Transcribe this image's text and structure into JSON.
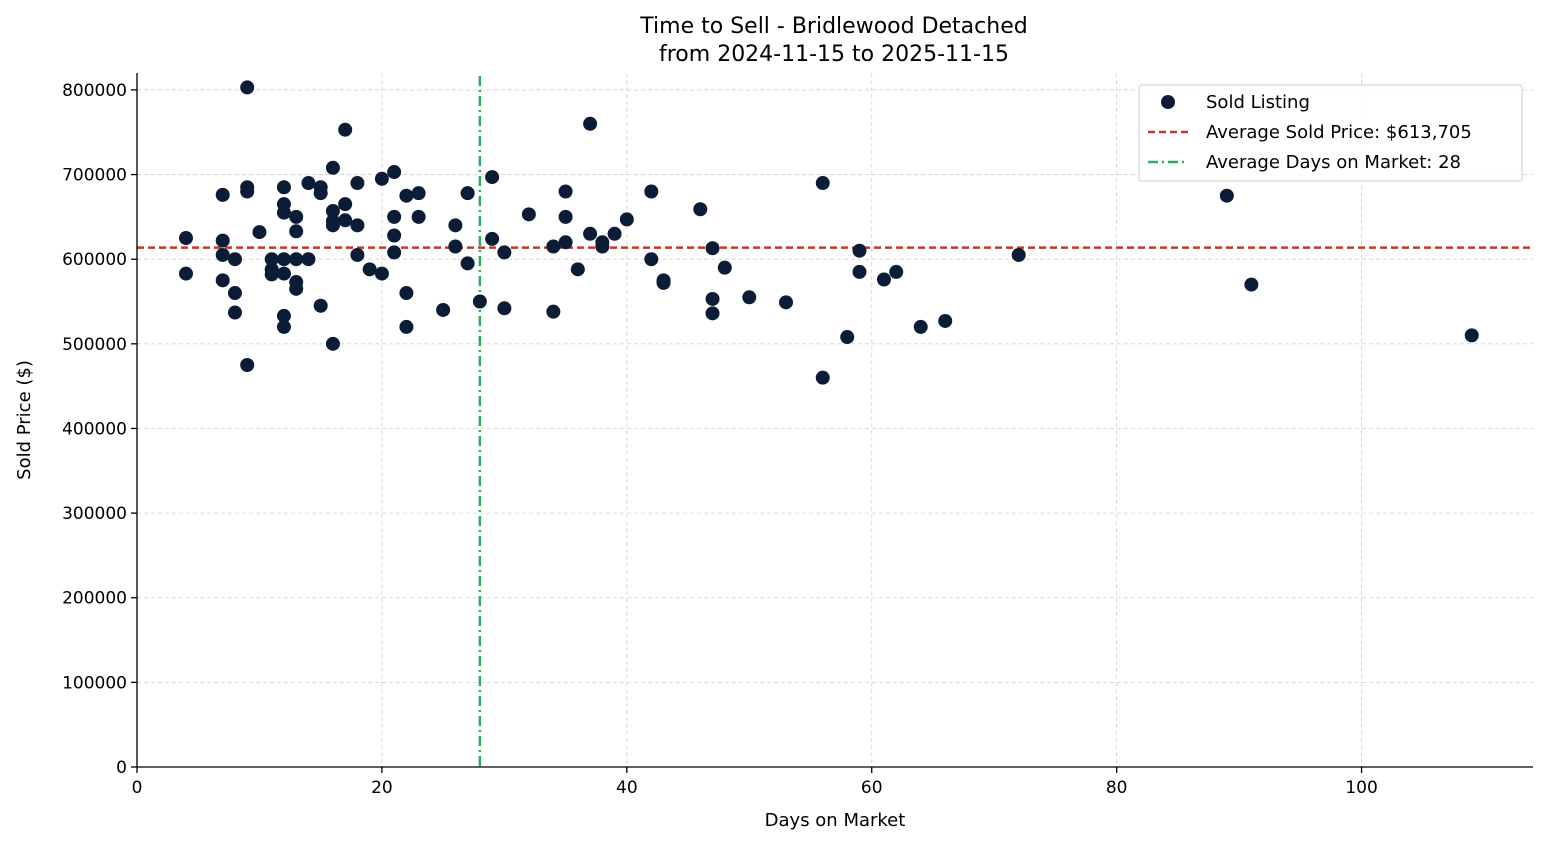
{
  "chart_data": {
    "type": "scatter",
    "title": "Time to Sell - Bridlewood Detached",
    "subtitle": "from 2024-11-15 to 2025-11-15",
    "xlabel": "Days on Market",
    "ylabel": "Sold Price ($)",
    "xlim": [
      0,
      114
    ],
    "ylim": [
      0,
      820000
    ],
    "x_ticks": [
      0,
      20,
      40,
      60,
      80,
      100
    ],
    "y_ticks": [
      0,
      100000,
      200000,
      300000,
      400000,
      500000,
      600000,
      700000,
      800000
    ],
    "grid": true,
    "legend_position": "top-right",
    "colors": {
      "points": "#0b1d36",
      "avg_price_line": "#c0392b",
      "avg_days_line": "#27ae60"
    },
    "series": [
      {
        "name": "Sold Listing",
        "points": [
          [
            4,
            625000
          ],
          [
            4,
            583000
          ],
          [
            7,
            676000
          ],
          [
            7,
            622000
          ],
          [
            7,
            605000
          ],
          [
            7,
            575000
          ],
          [
            8,
            600000
          ],
          [
            8,
            560000
          ],
          [
            8,
            537000
          ],
          [
            9,
            803000
          ],
          [
            9,
            685000
          ],
          [
            9,
            680000
          ],
          [
            9,
            475000
          ],
          [
            10,
            632000
          ],
          [
            11,
            600000
          ],
          [
            11,
            588000
          ],
          [
            11,
            582000
          ],
          [
            12,
            685000
          ],
          [
            12,
            665000
          ],
          [
            12,
            655000
          ],
          [
            12,
            600000
          ],
          [
            12,
            583000
          ],
          [
            12,
            533000
          ],
          [
            12,
            520000
          ],
          [
            13,
            650000
          ],
          [
            13,
            633000
          ],
          [
            13,
            600000
          ],
          [
            13,
            573000
          ],
          [
            13,
            565000
          ],
          [
            14,
            690000
          ],
          [
            14,
            600000
          ],
          [
            15,
            685000
          ],
          [
            15,
            678000
          ],
          [
            15,
            545000
          ],
          [
            16,
            708000
          ],
          [
            16,
            657000
          ],
          [
            16,
            645000
          ],
          [
            16,
            640000
          ],
          [
            16,
            500000
          ],
          [
            17,
            753000
          ],
          [
            17,
            665000
          ],
          [
            17,
            646000
          ],
          [
            18,
            690000
          ],
          [
            18,
            640000
          ],
          [
            18,
            605000
          ],
          [
            19,
            588000
          ],
          [
            20,
            695000
          ],
          [
            20,
            583000
          ],
          [
            21,
            703000
          ],
          [
            21,
            650000
          ],
          [
            21,
            628000
          ],
          [
            21,
            608000
          ],
          [
            22,
            675000
          ],
          [
            22,
            560000
          ],
          [
            22,
            520000
          ],
          [
            23,
            678000
          ],
          [
            23,
            650000
          ],
          [
            25,
            540000
          ],
          [
            26,
            640000
          ],
          [
            26,
            615000
          ],
          [
            27,
            678000
          ],
          [
            27,
            595000
          ],
          [
            28,
            550000
          ],
          [
            29,
            697000
          ],
          [
            29,
            624000
          ],
          [
            30,
            608000
          ],
          [
            30,
            542000
          ],
          [
            32,
            653000
          ],
          [
            34,
            615000
          ],
          [
            34,
            538000
          ],
          [
            35,
            680000
          ],
          [
            35,
            650000
          ],
          [
            35,
            620000
          ],
          [
            36,
            588000
          ],
          [
            37,
            760000
          ],
          [
            37,
            630000
          ],
          [
            38,
            620000
          ],
          [
            38,
            615000
          ],
          [
            39,
            630000
          ],
          [
            40,
            647000
          ],
          [
            42,
            680000
          ],
          [
            42,
            600000
          ],
          [
            43,
            575000
          ],
          [
            43,
            572000
          ],
          [
            46,
            659000
          ],
          [
            47,
            613000
          ],
          [
            47,
            553000
          ],
          [
            47,
            536000
          ],
          [
            48,
            590000
          ],
          [
            50,
            555000
          ],
          [
            53,
            549000
          ],
          [
            56,
            690000
          ],
          [
            56,
            460000
          ],
          [
            58,
            508000
          ],
          [
            59,
            610000
          ],
          [
            59,
            585000
          ],
          [
            61,
            576000
          ],
          [
            62,
            585000
          ],
          [
            64,
            520000
          ],
          [
            66,
            527000
          ],
          [
            72,
            605000
          ],
          [
            89,
            675000
          ],
          [
            91,
            570000
          ],
          [
            109,
            510000
          ]
        ]
      }
    ],
    "reference_lines": {
      "avg_price": {
        "name": "Average Sold Price: $613,705",
        "value": 613705,
        "orientation": "horizontal",
        "style": "dashed"
      },
      "avg_days": {
        "name": "Average Days on Market: 28",
        "value": 28,
        "orientation": "vertical",
        "style": "dash-dot"
      }
    }
  }
}
